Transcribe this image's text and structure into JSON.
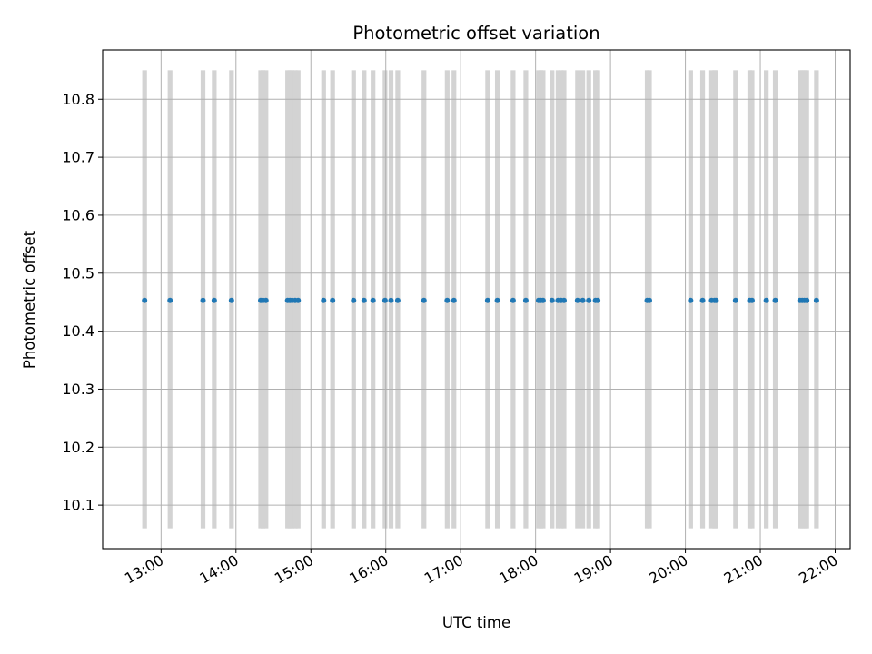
{
  "chart_data": {
    "type": "scatter",
    "title": "Photometric offset variation",
    "xlabel": "UTC time",
    "ylabel": "Photometric offset",
    "x_unit": "UTC hour of day",
    "xlim": [
      12.22,
      22.2
    ],
    "ylim": [
      10.025,
      10.885
    ],
    "x_ticks": [
      13,
      14,
      15,
      16,
      17,
      18,
      19,
      20,
      21,
      22
    ],
    "x_tick_labels": [
      "13:00",
      "14:00",
      "15:00",
      "16:00",
      "17:00",
      "18:00",
      "19:00",
      "20:00",
      "21:00",
      "22:00"
    ],
    "y_ticks": [
      10.1,
      10.2,
      10.3,
      10.4,
      10.5,
      10.6,
      10.7,
      10.8
    ],
    "y_tick_labels": [
      "10.1",
      "10.2",
      "10.3",
      "10.4",
      "10.5",
      "10.6",
      "10.7",
      "10.8"
    ],
    "grid": true,
    "series": [
      {
        "color": "#1f77b4",
        "marker": "dot",
        "x": [
          12.78,
          13.12,
          13.56,
          13.71,
          13.94,
          14.33,
          14.36,
          14.4,
          14.69,
          14.72,
          14.75,
          14.79,
          14.83,
          15.17,
          15.29,
          15.57,
          15.71,
          15.83,
          15.99,
          16.07,
          16.16,
          16.51,
          16.82,
          16.91,
          17.36,
          17.49,
          17.7,
          17.87,
          18.04,
          18.07,
          18.1,
          18.22,
          18.3,
          18.34,
          18.38,
          18.56,
          18.63,
          18.71,
          18.8,
          18.83,
          19.49,
          19.52,
          20.07,
          20.23,
          20.35,
          20.39,
          20.41,
          20.67,
          20.86,
          20.89,
          21.08,
          21.2,
          21.53,
          21.56,
          21.59,
          21.62,
          21.75
        ],
        "y": [
          10.453,
          10.453,
          10.453,
          10.453,
          10.453,
          10.453,
          10.453,
          10.453,
          10.453,
          10.453,
          10.453,
          10.453,
          10.453,
          10.453,
          10.453,
          10.453,
          10.453,
          10.453,
          10.453,
          10.453,
          10.453,
          10.453,
          10.453,
          10.453,
          10.453,
          10.453,
          10.453,
          10.453,
          10.453,
          10.453,
          10.453,
          10.453,
          10.453,
          10.453,
          10.453,
          10.453,
          10.453,
          10.453,
          10.453,
          10.453,
          10.453,
          10.453,
          10.453,
          10.453,
          10.453,
          10.453,
          10.453,
          10.453,
          10.453,
          10.453,
          10.453,
          10.453,
          10.453,
          10.453,
          10.453,
          10.453,
          10.453
        ]
      }
    ],
    "vertical_bands": {
      "color": "#d3d3d3",
      "y_range": [
        10.06,
        10.85
      ],
      "x": [
        12.78,
        13.12,
        13.56,
        13.71,
        13.94,
        14.33,
        14.36,
        14.4,
        14.69,
        14.72,
        14.75,
        14.79,
        14.83,
        15.17,
        15.29,
        15.57,
        15.71,
        15.83,
        15.99,
        16.07,
        16.16,
        16.51,
        16.82,
        16.91,
        17.36,
        17.49,
        17.7,
        17.87,
        18.04,
        18.07,
        18.1,
        18.22,
        18.3,
        18.34,
        18.38,
        18.56,
        18.63,
        18.71,
        18.8,
        18.83,
        19.49,
        19.52,
        20.07,
        20.23,
        20.35,
        20.39,
        20.41,
        20.67,
        20.86,
        20.89,
        21.08,
        21.2,
        21.53,
        21.56,
        21.59,
        21.62,
        21.75
      ]
    }
  }
}
